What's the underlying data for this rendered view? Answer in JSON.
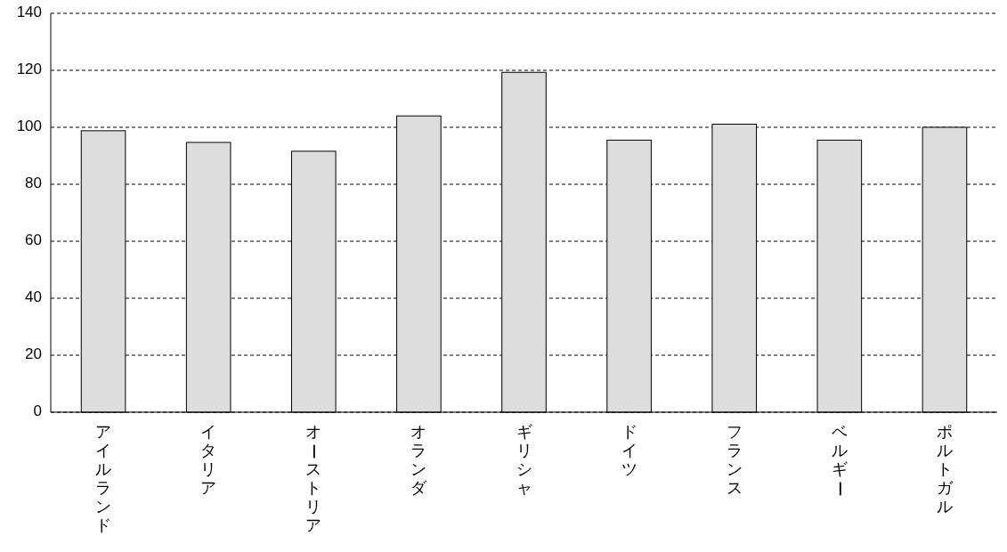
{
  "chart_data": {
    "type": "bar",
    "categories": [
      "アイルランド",
      "イタリア",
      "オーストリア",
      "オランダ",
      "ギリシャ",
      "ドイツ",
      "フランス",
      "ベルギー",
      "ポルトガル"
    ],
    "values": [
      98.8,
      94.7,
      91.6,
      104,
      119.3,
      95.5,
      101.1,
      95.5,
      100
    ],
    "color": "#dddddd",
    "ylim": [
      0,
      140
    ],
    "yticks": [
      0,
      20,
      40,
      60,
      80,
      100,
      120,
      140
    ],
    "grid": "y"
  }
}
